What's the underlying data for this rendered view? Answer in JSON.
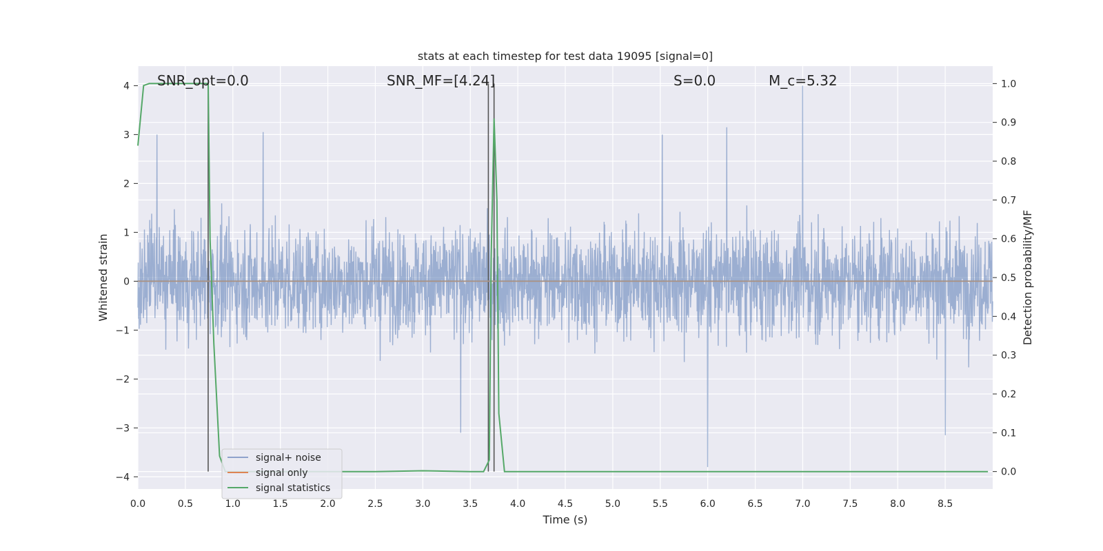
{
  "chart_data": {
    "type": "line",
    "title": "stats at each timestep for test data 19095 [signal=0]",
    "xlabel": "Time (s)",
    "ylabel_left": "Whitened strain",
    "ylabel_right": "Detection probability/MF",
    "xlim": [
      0.0,
      9.0
    ],
    "ylim_left": [
      -4.25,
      4.4
    ],
    "ylim_right": [
      -0.045,
      1.045
    ],
    "x_ticks": [
      "0.0",
      "0.5",
      "1.0",
      "1.5",
      "2.0",
      "2.5",
      "3.0",
      "3.5",
      "4.0",
      "4.5",
      "5.0",
      "5.5",
      "6.0",
      "6.5",
      "7.0",
      "7.5",
      "8.0",
      "8.5"
    ],
    "y_ticks_left": [
      "4",
      "3",
      "2",
      "1",
      "0",
      "−1",
      "−2",
      "−3",
      "−4"
    ],
    "y_ticks_right": [
      "1.0",
      "0.9",
      "0.8",
      "0.7",
      "0.6",
      "0.5",
      "0.4",
      "0.3",
      "0.2",
      "0.1",
      "0.0"
    ],
    "grid": true,
    "legend_position": "bottom-left",
    "annotations": [
      {
        "id": "snr-opt",
        "x": 0.2,
        "text": "SNR_opt=0.0"
      },
      {
        "id": "snr-mf",
        "x": 2.6,
        "text": "SNR_MF=[4.24]"
      },
      {
        "id": "s",
        "x": 5.6,
        "text": "S=0.0"
      },
      {
        "id": "mc",
        "x": 6.6,
        "text": "M_c=5.32"
      }
    ],
    "vertical_lines": [
      {
        "x": 0.74,
        "y_from": 0.0,
        "y_to": 1.0
      },
      {
        "x": 3.69,
        "y_from": 0.0,
        "y_to": 1.0
      },
      {
        "x": 3.75,
        "y_from": 0.0,
        "y_to": 1.0
      }
    ],
    "noise_envelope": {
      "spikes": [
        {
          "x": 0.2,
          "value": 3.0
        },
        {
          "x": 1.32,
          "value": 3.05
        },
        {
          "x": 3.4,
          "value": -3.1
        },
        {
          "x": 5.52,
          "value": 3.0
        },
        {
          "x": 6.0,
          "value": -3.8
        },
        {
          "x": 6.2,
          "value": 3.15
        },
        {
          "x": 7.0,
          "value": 4.0
        },
        {
          "x": 8.5,
          "value": -3.15
        }
      ],
      "typical_range": [
        -2.0,
        2.2
      ]
    },
    "series": [
      {
        "name": "signal+ noise",
        "color": "#4c72b0",
        "axis": "left"
      },
      {
        "name": "signal only",
        "color": "#dd8452",
        "axis": "left",
        "x": [
          0.0,
          9.0
        ],
        "y": [
          0.0,
          0.0
        ]
      },
      {
        "name": "signal statistics",
        "color": "#55a868",
        "axis": "right",
        "x": [
          0.0,
          0.06,
          0.12,
          0.18,
          0.3,
          0.5,
          0.7,
          0.74,
          0.76,
          0.8,
          0.86,
          0.92,
          1.0,
          1.5,
          2.0,
          2.5,
          3.0,
          3.5,
          3.64,
          3.7,
          3.72,
          3.75,
          3.78,
          3.8,
          3.86,
          4.0,
          5.0,
          6.0,
          7.0,
          8.0,
          8.95
        ],
        "y": [
          0.84,
          0.995,
          1.0,
          1.0,
          1.0,
          1.0,
          1.0,
          1.0,
          0.6,
          0.33,
          0.04,
          0.0,
          0.0,
          0.0,
          0.0,
          0.0,
          0.002,
          0.0,
          0.0,
          0.03,
          0.55,
          0.91,
          0.7,
          0.15,
          0.0,
          0.0,
          0.0,
          0.0,
          0.0,
          0.0,
          0.0
        ]
      }
    ]
  }
}
